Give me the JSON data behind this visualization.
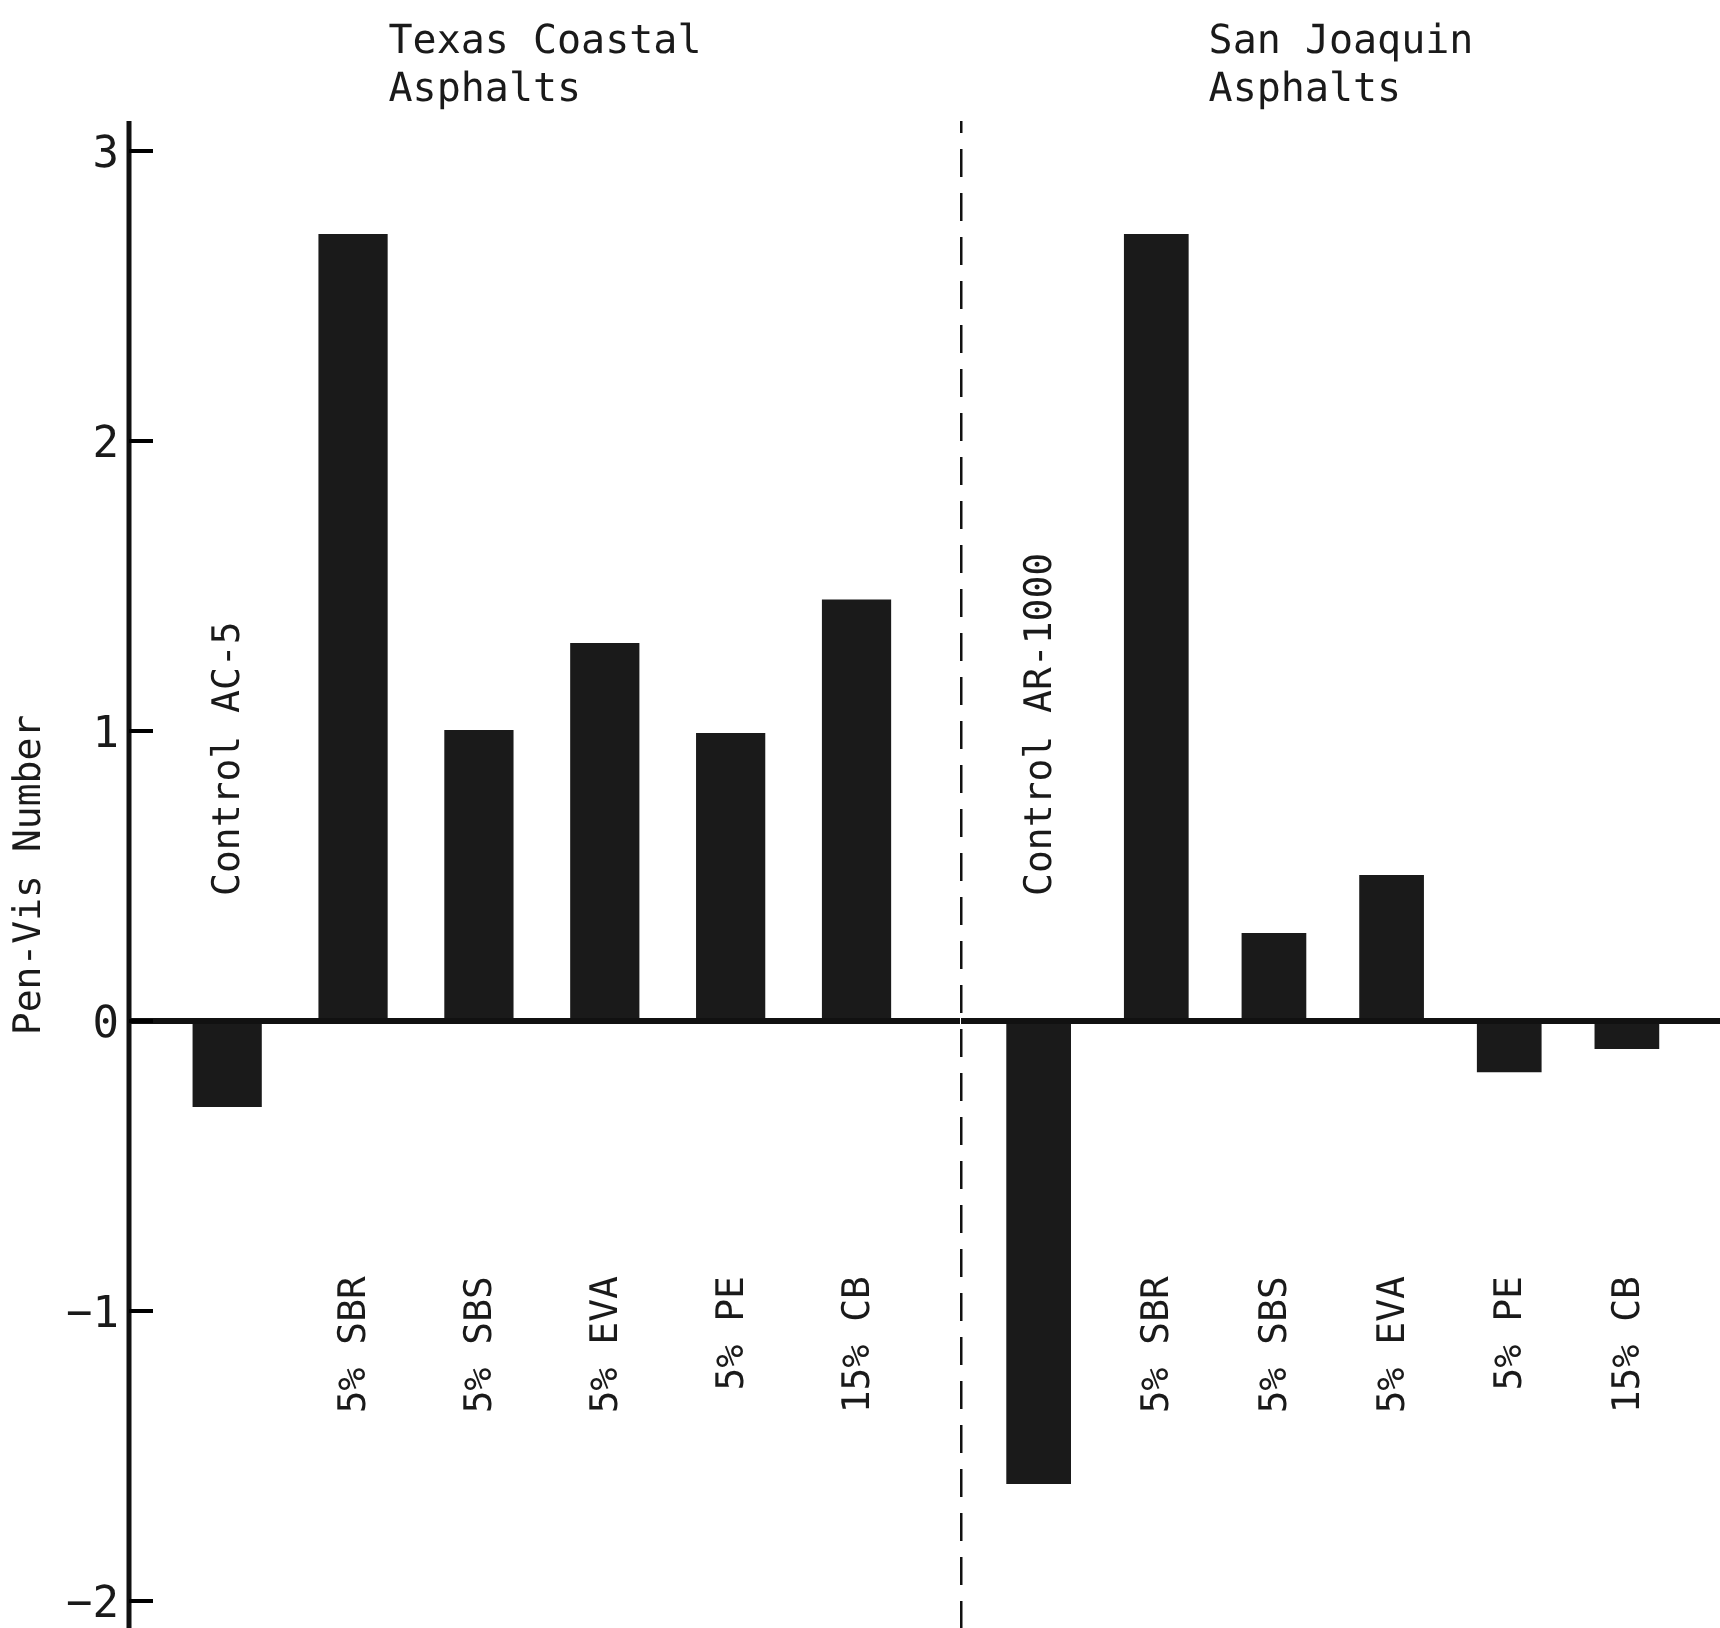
{
  "chart_data": [
    {
      "type": "bar",
      "title": "Texas Coastal Asphalts",
      "ylabel": "Pen-Vis Number",
      "categories": [
        "Control AC-5",
        "5% SBR",
        "5% SBS",
        "5% EVA",
        "5% PE",
        "15% CB"
      ],
      "values": [
        -0.3,
        2.71,
        1.0,
        1.3,
        0.99,
        1.45
      ],
      "color": "#1a1a1a",
      "ylim": [
        -2.1,
        3.1
      ],
      "yticks": [
        -2,
        -1,
        0,
        1,
        2,
        3
      ],
      "tick_labels": "y"
    },
    {
      "type": "bar",
      "title": "San Joaquin Asphalts",
      "categories": [
        "Control AR-1000",
        "5% SBR",
        "5% SBS",
        "5% EVA",
        "5% PE",
        "15% CB"
      ],
      "values": [
        -1.6,
        2.71,
        0.3,
        0.5,
        -0.18,
        -0.1
      ],
      "color": "#1a1a1a",
      "ylim": [
        -2.1,
        3.1
      ],
      "tick_labels": false
    }
  ]
}
